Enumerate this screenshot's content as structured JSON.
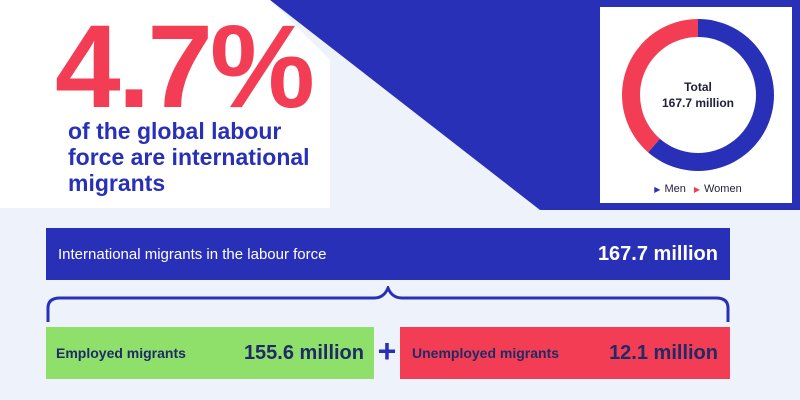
{
  "headline": {
    "percent": "4.7%",
    "caption": "of the global labour force are international migrants"
  },
  "chart_data": {
    "type": "pie",
    "center_label_line1": "Total",
    "center_label_line2": "167.7 million",
    "categories": [
      "Men",
      "Women"
    ],
    "values": [
      0.614,
      0.386
    ],
    "colors": [
      "#2830b8",
      "#f23d54"
    ],
    "legend": "bottom"
  },
  "breakdown": {
    "total_label": "International migrants in the labour force",
    "total_value": "167.7 million",
    "employed_label": "Employed migrants",
    "employed_value": "155.6 million",
    "plus": "+",
    "unemployed_label": "Unemployed migrants",
    "unemployed_value": "12.1 million"
  },
  "colors": {
    "blue": "#2830b8",
    "red": "#f23d54",
    "green": "#8ee06a",
    "light_bg": "#eef3fb"
  }
}
